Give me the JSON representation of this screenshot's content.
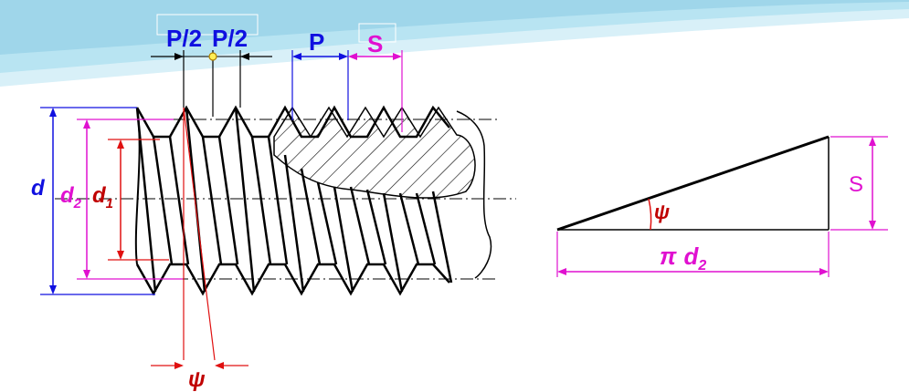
{
  "diagram": {
    "thread_labels": {
      "half_pitch_left": "P/2",
      "half_pitch_right": "P/2",
      "pitch": "P",
      "lead": "S",
      "major_diameter": "d",
      "pitch_diameter_main": "d",
      "pitch_diameter_sub": "2",
      "minor_diameter_main": "d",
      "minor_diameter_sub": "1",
      "lead_angle": "ψ"
    },
    "triangle_labels": {
      "lead": "S",
      "angle": "ψ",
      "base_pi": "π",
      "base_d": "d",
      "base_sub": "2"
    },
    "colors": {
      "blue": "#1010e0",
      "magenta": "#e010d0",
      "red": "#e01010",
      "darkred": "#c00000",
      "black": "#000000",
      "banner": "#a8dcef"
    }
  }
}
